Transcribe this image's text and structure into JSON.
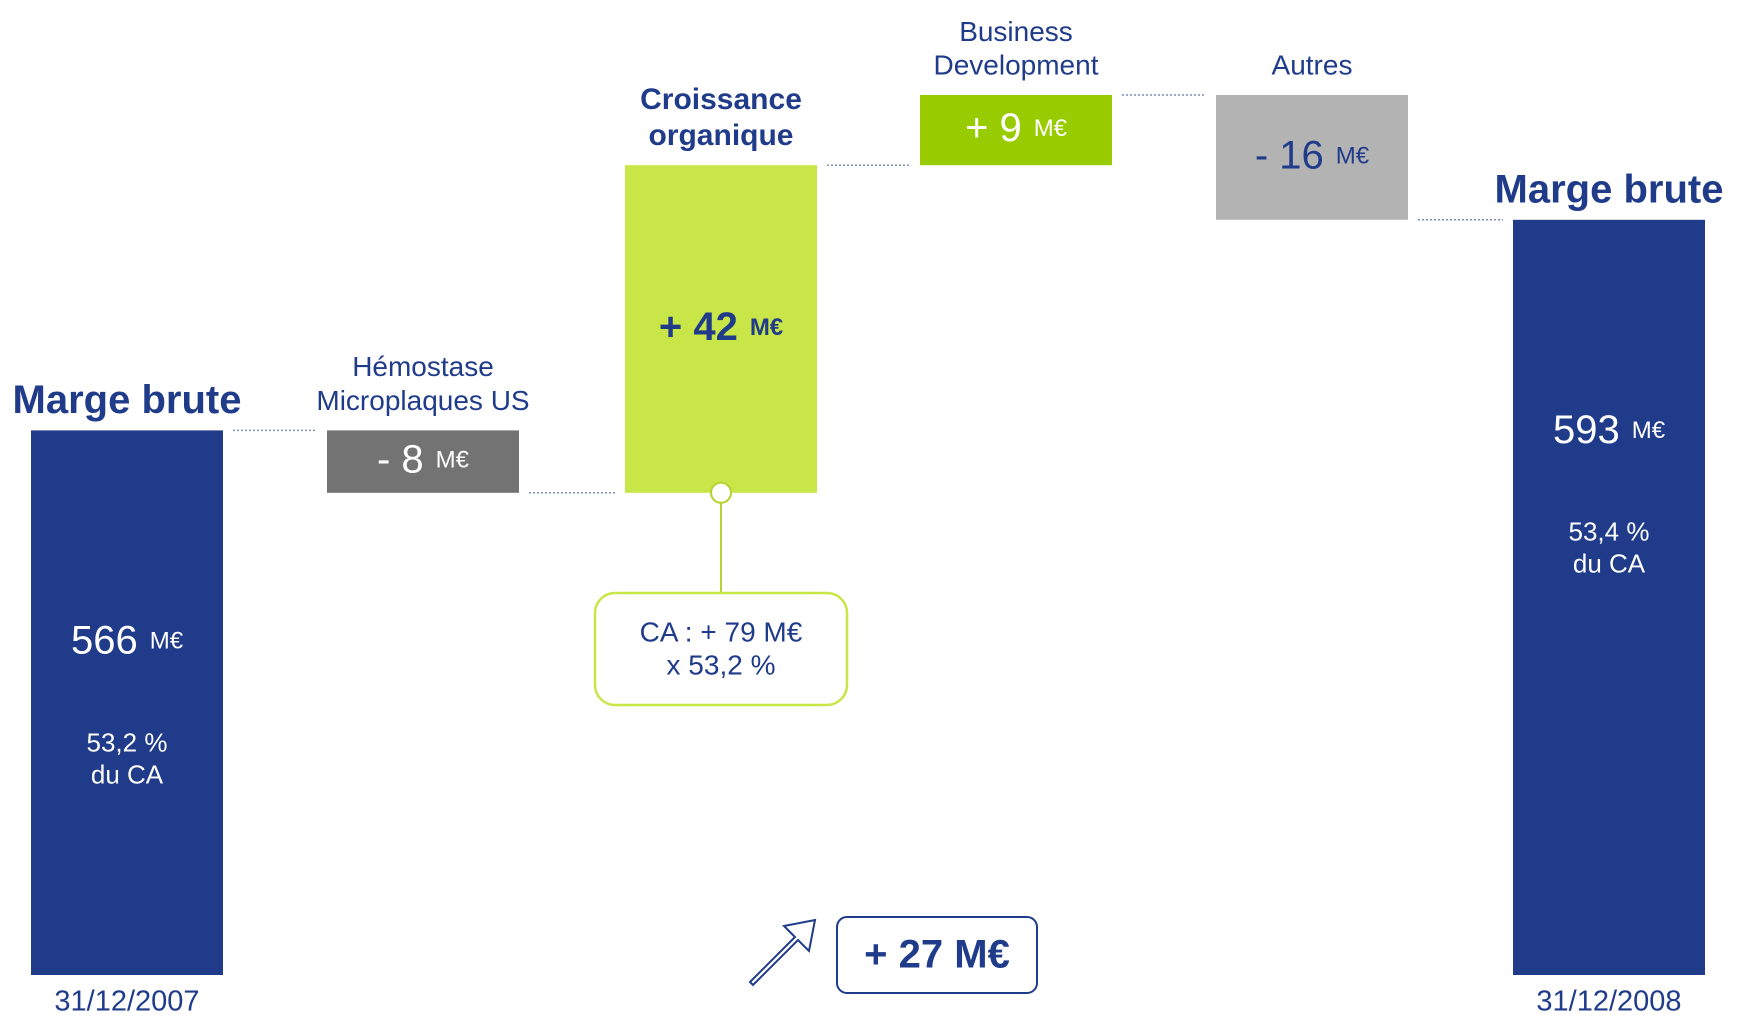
{
  "chart_data": {
    "type": "waterfall",
    "categories": [
      [
        "Marge brute"
      ],
      [
        "Hémostase",
        "Microplaques US"
      ],
      [
        "Croissance",
        "organique"
      ],
      [
        "Business",
        "Development"
      ],
      [
        "Autres"
      ],
      [
        "Marge brute"
      ]
    ],
    "values": [
      566,
      -8,
      42,
      9,
      -16,
      593
    ],
    "value_labels": [
      "566",
      "- 8",
      "+ 42",
      "+ 9",
      "- 16",
      "593"
    ],
    "unit": "M€",
    "colors": [
      "#1f3b8a",
      "#737373",
      "#c8e647",
      "#99cc00",
      "#b3b3b3",
      "#1f3b8a"
    ],
    "bar_notes": [
      [
        "53,2 %",
        "du CA"
      ],
      null,
      null,
      null,
      null,
      [
        "53,4 %",
        "du CA"
      ]
    ],
    "dates": [
      "31/12/2007",
      null,
      null,
      null,
      null,
      "31/12/2008"
    ],
    "callout": [
      "CA : + 79 M€",
      "x 53,2 %"
    ],
    "total_change": "+ 27 M€"
  }
}
